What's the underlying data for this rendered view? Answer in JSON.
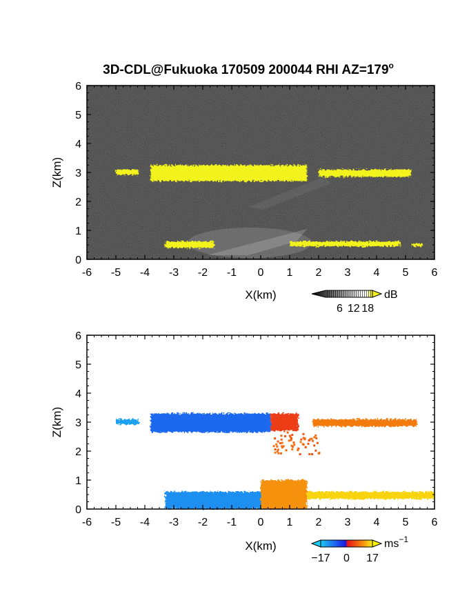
{
  "figure": {
    "title": "3D-CDL@Fukuoka 170509 200044 RHI AZ=179",
    "title_superscript": "o"
  },
  "chart_data": [
    {
      "type": "heatmap",
      "quantity": "backscatter",
      "xlabel": "X(km)",
      "ylabel": "Z(km)",
      "xlim": [
        -6,
        6
      ],
      "ylim": [
        0,
        6
      ],
      "xticks": [
        "-6",
        "-5",
        "-4",
        "-3",
        "-2",
        "-1",
        "0",
        "1",
        "2",
        "3",
        "4",
        "5",
        "6"
      ],
      "yticks": [
        "0",
        "1",
        "2",
        "3",
        "4",
        "5",
        "6"
      ],
      "background_color": "#161616",
      "highlight_color": "#f2f21a",
      "colorbar": {
        "unit": "dB",
        "ticks": [
          "6",
          "12",
          "18"
        ],
        "range": [
          0,
          20
        ]
      },
      "layers": [
        {
          "x": [
            -5.0,
            -4.2
          ],
          "z": [
            2.92,
            3.1
          ]
        },
        {
          "x": [
            -3.8,
            1.6
          ],
          "z": [
            2.7,
            3.25
          ]
        },
        {
          "x": [
            2.0,
            5.2
          ],
          "z": [
            2.85,
            3.1
          ]
        },
        {
          "x": [
            -3.3,
            -1.6
          ],
          "z": [
            0.4,
            0.62
          ]
        },
        {
          "x": [
            1.0,
            4.8
          ],
          "z": [
            0.45,
            0.62
          ]
        },
        {
          "x": [
            5.2,
            5.6
          ],
          "z": [
            0.45,
            0.55
          ]
        }
      ]
    },
    {
      "type": "heatmap",
      "quantity": "radial velocity",
      "xlabel": "X(km)",
      "ylabel": "Z(km)",
      "xlim": [
        -6,
        6
      ],
      "ylim": [
        0,
        6
      ],
      "xticks": [
        "-6",
        "-5",
        "-4",
        "-3",
        "-2",
        "-1",
        "0",
        "1",
        "2",
        "3",
        "4",
        "5",
        "6"
      ],
      "yticks": [
        "0",
        "1",
        "2",
        "3",
        "4",
        "5",
        "6"
      ],
      "colorbar": {
        "unit": "ms",
        "unit_superscript": "−1",
        "ticks": [
          "−17",
          "0",
          "17"
        ],
        "range": [
          -17,
          17
        ],
        "colors": [
          "#1ec8f0",
          "#1f5cf0",
          "#1a1adc",
          "#e81818",
          "#f06010",
          "#f7a010",
          "#f7f010"
        ]
      },
      "layers": [
        {
          "x": [
            -5.0,
            -4.2
          ],
          "z": [
            2.92,
            3.1
          ],
          "v": -15
        },
        {
          "x": [
            -3.8,
            0.35
          ],
          "z": [
            2.65,
            3.3
          ],
          "v": -12
        },
        {
          "x": [
            0.35,
            1.3
          ],
          "z": [
            2.7,
            3.3
          ],
          "v": 3
        },
        {
          "x": [
            1.8,
            5.4
          ],
          "z": [
            2.85,
            3.1
          ],
          "v": 8
        },
        {
          "x": [
            -3.3,
            0.0
          ],
          "z": [
            0.0,
            0.6
          ],
          "v": -14
        },
        {
          "x": [
            0.0,
            1.6
          ],
          "z": [
            0.0,
            1.0
          ],
          "v": 10
        },
        {
          "x": [
            1.6,
            6.0
          ],
          "z": [
            0.35,
            0.6
          ],
          "v": 15
        }
      ]
    }
  ]
}
